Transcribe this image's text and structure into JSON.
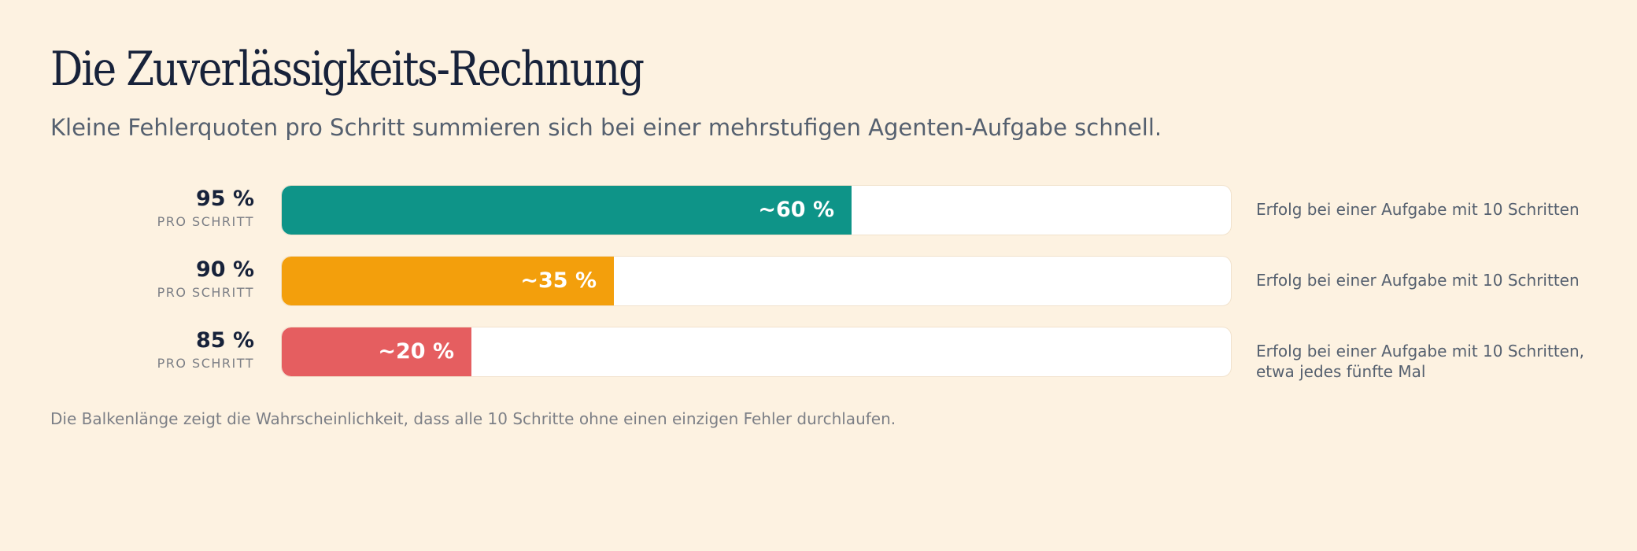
{
  "header": {
    "title": "Die Zuverlässigkeits-Rechnung",
    "subtitle": "Kleine Fehlerquoten pro Schritt summieren sich bei einer mehrstufigen Agenten-Aufgabe schnell."
  },
  "footnote": "Die Balkenlänge zeigt die Wahrscheinlichkeit, dass alle 10 Schritte ohne einen einzigen Fehler durchlaufen.",
  "chart_data": {
    "type": "bar",
    "orientation": "horizontal",
    "xlim": [
      0,
      100
    ],
    "categories": [
      "95 %",
      "90 %",
      "85 %"
    ],
    "category_sublabel": "PRO SCHRITT",
    "values": [
      60,
      35,
      20
    ],
    "value_labels": [
      "~60 %",
      "~35 %",
      "~20 %"
    ],
    "colors": [
      "#0e9488",
      "#f39f0c",
      "#e55e60"
    ],
    "annotations": [
      "Erfolg bei einer Aufgabe mit 10 Schritten",
      "Erfolg bei einer Aufgabe mit 10 Schritten",
      "Erfolg bei einer Aufgabe mit 10 Schritten, etwa jedes fünfte Mal"
    ]
  }
}
